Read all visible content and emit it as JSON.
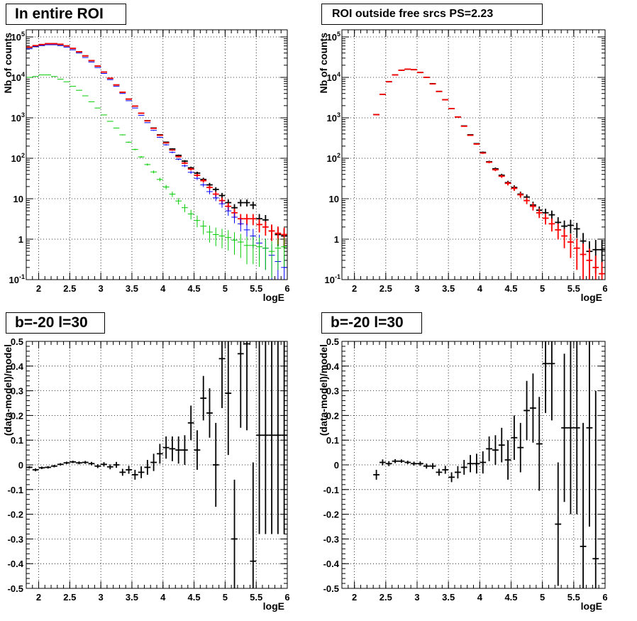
{
  "chart_data": [
    {
      "type": "scatter",
      "title": "In entire ROI",
      "xlabel": "logE",
      "ylabel": "Nb of counts",
      "xlim": [
        1.8,
        6.0
      ],
      "ylim": [
        0.1,
        150000
      ],
      "yscale": "log",
      "grid": true,
      "x_ticks": [
        "2",
        "2.5",
        "3",
        "3.5",
        "4",
        "4.5",
        "5",
        "5.5",
        "6"
      ],
      "y_ticks": [
        "10^-1",
        "1",
        "10",
        "10^2",
        "10^3",
        "10^4",
        "10^5"
      ],
      "series": [
        {
          "color": "#000000",
          "x": [
            1.85,
            1.95,
            2.05,
            2.15,
            2.25,
            2.35,
            2.45,
            2.55,
            2.65,
            2.75,
            2.85,
            2.95,
            3.05,
            3.15,
            3.25,
            3.35,
            3.45,
            3.55,
            3.65,
            3.75,
            3.85,
            3.95,
            4.05,
            4.15,
            4.25,
            4.35,
            4.45,
            4.55,
            4.65,
            4.75,
            4.85,
            4.95,
            5.05,
            5.15,
            5.25,
            5.35,
            5.45,
            5.55,
            5.65,
            5.75,
            5.85,
            5.95
          ],
          "y": [
            55000,
            60000,
            64000,
            68000,
            68000,
            65000,
            60000,
            52000,
            43000,
            34000,
            26000,
            19000,
            13500,
            9500,
            6500,
            4300,
            2900,
            1950,
            1300,
            850,
            560,
            380,
            250,
            170,
            118,
            85,
            58,
            43,
            30,
            22,
            17,
            12,
            8,
            6,
            8,
            8,
            7,
            3.2,
            3,
            1.6,
            1.3,
            1.2
          ]
        },
        {
          "color": "#ff0000",
          "x": [
            1.85,
            1.95,
            2.05,
            2.15,
            2.25,
            2.35,
            2.45,
            2.55,
            2.65,
            2.75,
            2.85,
            2.95,
            3.05,
            3.15,
            3.25,
            3.35,
            3.45,
            3.55,
            3.65,
            3.75,
            3.85,
            3.95,
            4.05,
            4.15,
            4.25,
            4.35,
            4.45,
            4.55,
            4.65,
            4.75,
            4.85,
            4.95,
            5.05,
            5.15,
            5.25,
            5.35,
            5.45,
            5.55,
            5.65,
            5.75,
            5.85,
            5.95
          ],
          "y": [
            56000,
            61000,
            65000,
            68000,
            68000,
            66000,
            60000,
            52000,
            43000,
            34000,
            26000,
            19000,
            13500,
            9500,
            6500,
            4300,
            2900,
            1950,
            1300,
            840,
            550,
            370,
            240,
            160,
            110,
            76,
            54,
            38,
            28,
            19,
            13,
            9,
            6.5,
            4.5,
            3.2,
            3.2,
            3.2,
            2.3,
            2,
            1.6,
            1.4,
            1.3
          ]
        },
        {
          "color": "#0000ff",
          "x": [
            1.85,
            1.95,
            2.05,
            2.15,
            2.25,
            2.35,
            2.45,
            2.55,
            2.65,
            2.75,
            2.85,
            2.95,
            3.05,
            3.15,
            3.25,
            3.35,
            3.45,
            3.55,
            3.65,
            3.75,
            3.85,
            3.95,
            4.05,
            4.15,
            4.25,
            4.35,
            4.45,
            4.55,
            4.65,
            4.75,
            4.85,
            4.95,
            5.05,
            5.15,
            5.25,
            5.35,
            5.45,
            5.55,
            5.65,
            5.75,
            5.85,
            5.95
          ],
          "y": [
            51000,
            57000,
            61000,
            64000,
            64000,
            61000,
            56000,
            48000,
            40000,
            31000,
            24000,
            17500,
            12500,
            8800,
            6000,
            4000,
            2650,
            1750,
            1150,
            760,
            490,
            330,
            215,
            140,
            95,
            65,
            45,
            32,
            22,
            15,
            10.5,
            7.5,
            5,
            3.5,
            2.4,
            1.7,
            1.2,
            0.8,
            0.6,
            0.4,
            0.28,
            0.2
          ]
        },
        {
          "color": "#00cc00",
          "x": [
            1.85,
            1.95,
            2.05,
            2.15,
            2.25,
            2.35,
            2.45,
            2.55,
            2.65,
            2.75,
            2.85,
            2.95,
            3.05,
            3.15,
            3.25,
            3.35,
            3.45,
            3.55,
            3.65,
            3.75,
            3.85,
            3.95,
            4.05,
            4.15,
            4.25,
            4.35,
            4.45,
            4.55,
            4.65,
            4.75,
            4.85,
            4.95,
            5.05,
            5.15,
            5.25,
            5.35,
            5.45,
            5.55,
            5.65,
            5.75,
            5.85,
            5.95
          ],
          "y": [
            10000,
            10500,
            11500,
            11500,
            10500,
            9000,
            7800,
            6000,
            4800,
            3500,
            2500,
            1750,
            1180,
            820,
            560,
            380,
            250,
            165,
            108,
            70,
            46,
            30,
            19.5,
            13,
            8.8,
            6,
            4.2,
            2.9,
            2.1,
            1.5,
            1.3,
            1.2,
            1.1,
            0.95,
            0.85,
            0.7,
            0.7,
            0.65,
            0.6,
            0.5,
            0.6,
            0.65
          ]
        }
      ]
    },
    {
      "type": "scatter",
      "title": "ROI outside free srcs PS=2.23",
      "xlabel": "logE",
      "ylabel": "Nb of counts",
      "xlim": [
        1.8,
        6.0
      ],
      "ylim": [
        0.1,
        150000
      ],
      "yscale": "log",
      "grid": true,
      "x_ticks": [
        "2",
        "2.5",
        "3",
        "3.5",
        "4",
        "4.5",
        "5",
        "5.5",
        "6"
      ],
      "y_ticks": [
        "10^-1",
        "1",
        "10",
        "10^2",
        "10^3",
        "10^4",
        "10^5"
      ],
      "series": [
        {
          "color": "#000000",
          "x": [
            2.35,
            2.45,
            2.55,
            2.65,
            2.75,
            2.85,
            2.95,
            3.05,
            3.15,
            3.25,
            3.35,
            3.45,
            3.55,
            3.65,
            3.75,
            3.85,
            3.95,
            4.05,
            4.15,
            4.25,
            4.35,
            4.45,
            4.55,
            4.65,
            4.75,
            4.85,
            4.95,
            5.05,
            5.15,
            5.25,
            5.35,
            5.45,
            5.55,
            5.65,
            5.75,
            5.85,
            5.95
          ],
          "y": [
            1200,
            3800,
            7800,
            11500,
            15000,
            16000,
            15500,
            13200,
            10000,
            7000,
            4500,
            2800,
            1700,
            1050,
            630,
            380,
            230,
            140,
            82,
            55,
            38,
            25,
            19,
            13,
            11,
            7,
            5.2,
            4.5,
            4,
            2.6,
            2.1,
            2.2,
            1.8,
            0.9,
            0.5,
            0.55,
            0.55
          ]
        },
        {
          "color": "#ff0000",
          "x": [
            2.35,
            2.45,
            2.55,
            2.65,
            2.75,
            2.85,
            2.95,
            3.05,
            3.15,
            3.25,
            3.35,
            3.45,
            3.55,
            3.65,
            3.75,
            3.85,
            3.95,
            4.05,
            4.15,
            4.25,
            4.35,
            4.45,
            4.55,
            4.65,
            4.75,
            4.85,
            4.95,
            5.05,
            5.15,
            5.25,
            5.35,
            5.45,
            5.55,
            5.65,
            5.75,
            5.85,
            5.95
          ],
          "y": [
            1200,
            3800,
            7800,
            11500,
            15000,
            16000,
            15500,
            13200,
            10000,
            6900,
            4500,
            2800,
            1700,
            1050,
            620,
            370,
            225,
            135,
            80,
            52,
            36,
            24,
            18,
            12.5,
            9,
            6.5,
            4.5,
            3.3,
            2.4,
            1.7,
            1.2,
            0.85,
            0.6,
            0.42,
            0.3,
            0.2,
            0.14
          ]
        }
      ]
    },
    {
      "type": "scatter",
      "title": "b=-20 l=30",
      "xlabel": "logE",
      "ylabel": "(data-model)/model",
      "xlim": [
        1.8,
        6.0
      ],
      "ylim": [
        -0.5,
        0.5
      ],
      "grid": true,
      "x_ticks": [
        "2",
        "2.5",
        "3",
        "3.5",
        "4",
        "4.5",
        "5",
        "5.5",
        "6"
      ],
      "y_ticks": [
        "-0.5",
        "-0.4",
        "-0.3",
        "-0.2",
        "-0.1",
        "0",
        "0.1",
        "0.2",
        "0.3",
        "0.4",
        "0.5"
      ],
      "series": [
        {
          "color": "#000000",
          "x": [
            1.85,
            1.95,
            2.05,
            2.15,
            2.25,
            2.35,
            2.45,
            2.55,
            2.65,
            2.75,
            2.85,
            2.95,
            3.05,
            3.15,
            3.25,
            3.35,
            3.45,
            3.55,
            3.65,
            3.75,
            3.85,
            3.95,
            4.05,
            4.15,
            4.25,
            4.35,
            4.45,
            4.55,
            4.65,
            4.75,
            4.85,
            4.95,
            5.05,
            5.15,
            5.25,
            5.35,
            5.45,
            5.55,
            5.65,
            5.75,
            5.85,
            5.95
          ],
          "y": [
            -0.01,
            -0.02,
            -0.012,
            -0.01,
            -0.005,
            0.002,
            0.008,
            0.012,
            0.008,
            0.01,
            0.005,
            -0.005,
            0.002,
            -0.008,
            0,
            -0.03,
            -0.02,
            -0.04,
            -0.03,
            -0.01,
            0.01,
            0.045,
            0.07,
            0.065,
            0.06,
            0.06,
            0.17,
            0.06,
            0.27,
            0.21,
            0,
            0.43,
            0.29,
            -0.3,
            0.45,
            0.49,
            -0.39,
            0.12,
            0.12,
            0.12,
            0.12,
            0.12
          ],
          "yerr": [
            0.005,
            0.006,
            0.005,
            0.005,
            0.005,
            0.005,
            0.005,
            0.005,
            0.006,
            0.006,
            0.007,
            0.008,
            0.009,
            0.01,
            0.012,
            0.014,
            0.016,
            0.02,
            0.024,
            0.03,
            0.035,
            0.04,
            0.045,
            0.05,
            0.055,
            0.06,
            0.07,
            0.08,
            0.09,
            0.1,
            0.17,
            0.2,
            0.25,
            0.24,
            0.3,
            0.35,
            0.4,
            0.4,
            0.4,
            0.4,
            0.4,
            0.4
          ]
        }
      ]
    },
    {
      "type": "scatter",
      "title": "b=-20 l=30",
      "xlabel": "logE",
      "ylabel": "(data-model)/model",
      "xlim": [
        1.8,
        6.0
      ],
      "ylim": [
        -0.5,
        0.5
      ],
      "grid": true,
      "x_ticks": [
        "2",
        "2.5",
        "3",
        "3.5",
        "4",
        "4.5",
        "5",
        "5.5",
        "6"
      ],
      "y_ticks": [
        "-0.5",
        "-0.4",
        "-0.3",
        "-0.2",
        "-0.1",
        "0",
        "0.1",
        "0.2",
        "0.3",
        "0.4",
        "0.5"
      ],
      "series": [
        {
          "color": "#000000",
          "x": [
            2.35,
            2.45,
            2.55,
            2.65,
            2.75,
            2.85,
            2.95,
            3.05,
            3.15,
            3.25,
            3.35,
            3.45,
            3.55,
            3.65,
            3.75,
            3.85,
            3.95,
            4.05,
            4.15,
            4.25,
            4.35,
            4.45,
            4.55,
            4.65,
            4.75,
            4.85,
            4.95,
            5.05,
            5.15,
            5.25,
            5.35,
            5.45,
            5.55,
            5.65,
            5.75,
            5.85
          ],
          "y": [
            -0.04,
            0.01,
            0.005,
            0.015,
            0.015,
            0.01,
            0.005,
            0.005,
            -0.005,
            -0.005,
            -0.03,
            -0.02,
            -0.05,
            -0.03,
            -0.01,
            0.005,
            0.005,
            0.01,
            0.065,
            0.06,
            0.08,
            0.02,
            0.11,
            0.07,
            0.22,
            0.23,
            0.085,
            0.41,
            0.41,
            -0.24,
            0.15,
            0.15,
            0.15,
            -0.33,
            0.15,
            -0.38
          ],
          "yerr": [
            0.02,
            0.012,
            0.01,
            0.008,
            0.007,
            0.007,
            0.008,
            0.009,
            0.01,
            0.012,
            0.014,
            0.016,
            0.02,
            0.025,
            0.03,
            0.035,
            0.04,
            0.045,
            0.05,
            0.06,
            0.07,
            0.08,
            0.09,
            0.1,
            0.12,
            0.14,
            0.19,
            0.2,
            0.23,
            0.25,
            0.3,
            0.35,
            0.35,
            0.5,
            0.4,
            0.68
          ]
        }
      ]
    }
  ],
  "panels": [
    {
      "title": "In entire ROI",
      "ylabel": "Nb of counts",
      "xlabel": "logE"
    },
    {
      "title": "ROI outside free srcs PS=2.23",
      "ylabel": "Nb of counts",
      "xlabel": "logE"
    },
    {
      "title": "b=-20 l=30",
      "ylabel": "(data-model)/model",
      "xlabel": "logE"
    },
    {
      "title": "b=-20 l=30",
      "ylabel": "(data-model)/model",
      "xlabel": "logE"
    }
  ]
}
